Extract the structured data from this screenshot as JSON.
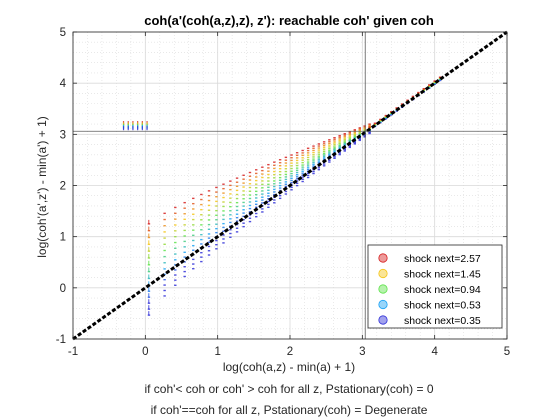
{
  "chart_data": {
    "type": "scatter",
    "title": "coh(a'(coh(a,z),z), z'): reachable coh' given coh",
    "xlabel": "log(coh(a,z) - min(a) + 1)",
    "ylabel": "log(coh'(a',z') - min(a') + 1)",
    "notes": [
      "if coh'< coh or coh' > coh for all z, Pstationary(coh) = 0",
      "if coh'==coh for all z, Pstationary(coh) = Degenerate"
    ],
    "xlim": [
      -1,
      5
    ],
    "ylim": [
      -1,
      5
    ],
    "xticks": [
      -1,
      0,
      1,
      2,
      3,
      4,
      5
    ],
    "yticks": [
      -1,
      0,
      1,
      2,
      3,
      4,
      5
    ],
    "grid": "on",
    "minor_grid": "on",
    "legend_position": "bottom-right",
    "reference_lines": {
      "x": 3.04,
      "y": 3.06
    },
    "diagonal": {
      "from": [
        -1,
        -1
      ],
      "to": [
        5,
        5
      ],
      "style": "dashed",
      "color": "#000000"
    },
    "series": [
      {
        "name": "shock next=2.57",
        "color": "#d62020",
        "x_start": 0.05,
        "y_start": 1.25,
        "top_y_start": 3.2
      },
      {
        "name": "shock next=1.45",
        "color": "#f5c518",
        "x_start": 0.05,
        "y_start": 0.85,
        "top_y_start": 3.15
      },
      {
        "name": "shock next=0.94",
        "color": "#5ee34a",
        "x_start": 0.05,
        "y_start": 0.45,
        "top_y_start": 3.1
      },
      {
        "name": "shock next=0.53",
        "color": "#1aa2f5",
        "x_start": 0.05,
        "y_start": 0.05,
        "top_y_start": 3.08
      },
      {
        "name": "shock next=0.35",
        "color": "#3030d8",
        "x_start": 0.05,
        "y_start": -0.3,
        "top_y_start": 3.05
      }
    ]
  }
}
